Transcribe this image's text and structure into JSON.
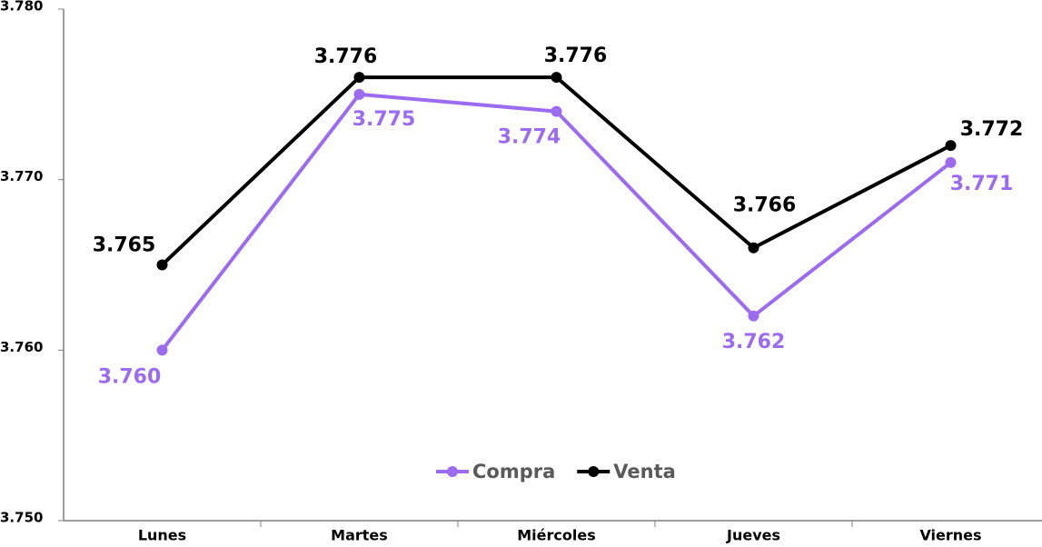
{
  "chart_data": {
    "type": "line",
    "categories": [
      "Lunes",
      "Martes",
      "Miércoles",
      "Jueves",
      "Viernes"
    ],
    "series": [
      {
        "name": "Compra",
        "color": "#9b6cf0",
        "values": [
          3.76,
          3.775,
          3.774,
          3.762,
          3.771
        ],
        "value_labels": [
          "3.760",
          "3.775",
          "3.774",
          "3.762",
          "3.771"
        ]
      },
      {
        "name": "Venta",
        "color": "#000000",
        "values": [
          3.765,
          3.776,
          3.776,
          3.766,
          3.772
        ],
        "value_labels": [
          "3.765",
          "3.776",
          "3.776",
          "3.766",
          "3.772"
        ]
      }
    ],
    "ylim": [
      3.75,
      3.78
    ],
    "yticks": [
      {
        "value": 3.75,
        "label": "3.750"
      },
      {
        "value": 3.76,
        "label": "3.760"
      },
      {
        "value": 3.77,
        "label": "3.770"
      },
      {
        "value": 3.78,
        "label": "3.780"
      }
    ],
    "legend": "bottom"
  }
}
